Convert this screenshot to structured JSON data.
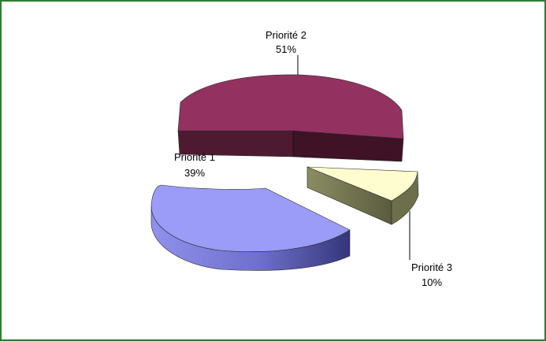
{
  "chart_data": {
    "type": "pie",
    "style": "3d-exploded",
    "legend": "none",
    "slices": [
      {
        "label": "Priorité 2",
        "percent_label": "51%",
        "value": 51,
        "color": "#933260",
        "side_color": "#4b1a30"
      },
      {
        "label": "Priorité 3",
        "percent_label": "10%",
        "value": 10,
        "color": "#fdfdd0",
        "side_color": "#707350"
      },
      {
        "label": "Priorité 1",
        "percent_label": "39%",
        "value": 39,
        "color": "#9a9cf8",
        "side_color": "#4a4c9a"
      }
    ]
  },
  "frame": {
    "border_color": "#2e7d32"
  }
}
